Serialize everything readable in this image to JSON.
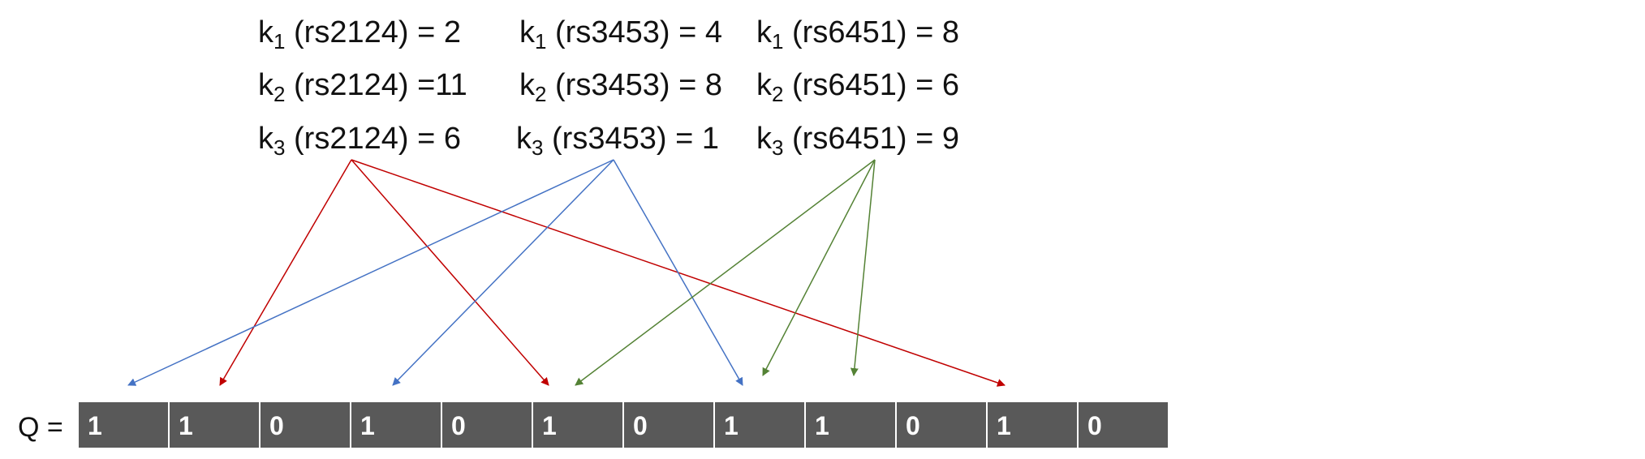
{
  "colors": {
    "red": "#C00000",
    "blue": "#4472C4",
    "green": "#548235",
    "cell_fill": "#595959",
    "cell_text": "#FFFFFF"
  },
  "hash_table": {
    "rows": [
      [
        {
          "k": "k",
          "sub": "1",
          "rest": " (rs2124) = 2"
        },
        {
          "k": "k",
          "sub": "1",
          "rest": " (rs3453) = 4"
        },
        {
          "k": "k",
          "sub": "1",
          "rest": " (rs6451) = 8"
        }
      ],
      [
        {
          "k": "k",
          "sub": "2",
          "rest": " (rs2124) =11"
        },
        {
          "k": "k",
          "sub": "2",
          "rest": " (rs3453) = 8"
        },
        {
          "k": "k",
          "sub": "2",
          "rest": " (rs6451) = 6"
        }
      ],
      [
        {
          "k": "k",
          "sub": "3",
          "rest": " (rs2124) = 6"
        },
        {
          "k": "k",
          "sub": "3",
          "rest": " (rs3453) = 1"
        },
        {
          "k": "k",
          "sub": "3",
          "rest": " (rs6451) = 9"
        }
      ]
    ]
  },
  "q": {
    "label": "Q =",
    "bits": [
      "1",
      "1",
      "0",
      "1",
      "0",
      "1",
      "0",
      "1",
      "1",
      "0",
      "1",
      "0"
    ]
  }
}
